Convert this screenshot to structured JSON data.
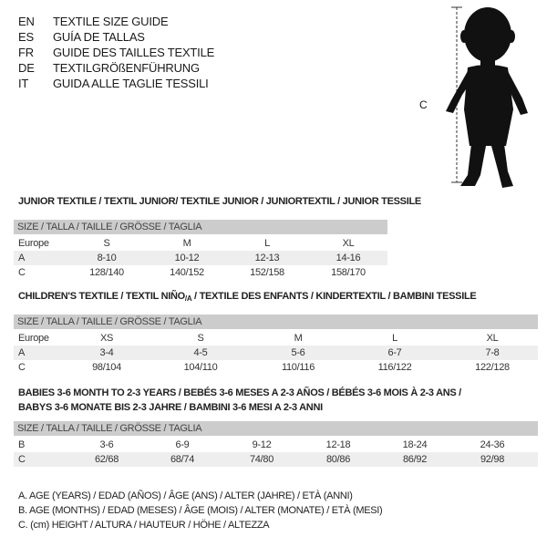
{
  "languages": [
    {
      "code": "EN",
      "title": "TEXTILE SIZE GUIDE"
    },
    {
      "code": "ES",
      "title": "GUÍA DE TALLAS"
    },
    {
      "code": "FR",
      "title": "GUIDE DES TAILLES TEXTILE"
    },
    {
      "code": "DE",
      "title": "TEXTILGRÖßENFÜHRUNG"
    },
    {
      "code": "IT",
      "title": "GUIDA ALLE TAGLIE TESSILI"
    }
  ],
  "figure": {
    "measure_label": "C"
  },
  "junior": {
    "title": "JUNIOR TEXTILE / TEXTIL JUNIOR/ TEXTILE JUNIOR / JUNIORTEXTIL / JUNIOR TESSILE",
    "header": "SIZE / TALLA / TAILLE / GRÖSSE / TAGLIA",
    "rows": [
      {
        "label": "Europe",
        "values": [
          "S",
          "M",
          "L",
          "XL"
        ]
      },
      {
        "label": "A",
        "values": [
          "8-10",
          "10-12",
          "12-13",
          "14-16"
        ]
      },
      {
        "label": "C",
        "values": [
          "128/140",
          "140/152",
          "152/158",
          "158/170"
        ]
      }
    ]
  },
  "children": {
    "title": "CHILDREN'S TEXTILE / TEXTIL NIÑO/A / TEXTILE DES ENFANTS / KINDERTEXTIL / BAMBINI TESSILE",
    "header": "SIZE / TALLA / TAILLE / GRÖSSE / TAGLIA",
    "rows": [
      {
        "label": "Europe",
        "values": [
          "XS",
          "S",
          "M",
          "L",
          "XL"
        ]
      },
      {
        "label": "A",
        "values": [
          "3-4",
          "4-5",
          "5-6",
          "6-7",
          "7-8"
        ]
      },
      {
        "label": "C",
        "values": [
          "98/104",
          "104/110",
          "110/116",
          "116/122",
          "122/128"
        ]
      }
    ]
  },
  "babies": {
    "title_1": "BABIES 3-6 MONTH TO 2-3 YEARS / BEBÉS 3-6 MESES A 2-3 AÑOS / BÉBÉS 3-6 MOIS À 2-3 ANS /",
    "title_2": "BABYS 3-6 MONATE BIS 2-3 JAHRE / BAMBINI 3-6 MESI A 2-3 ANNI",
    "header": "SIZE / TALLA / TAILLE / GRÖSSE / TAGLIA",
    "rows": [
      {
        "label": "B",
        "values": [
          "3-6",
          "6-9",
          "9-12",
          "12-18",
          "18-24",
          "24-36"
        ]
      },
      {
        "label": "C",
        "values": [
          "62/68",
          "68/74",
          "74/80",
          "80/86",
          "86/92",
          "92/98"
        ]
      }
    ]
  },
  "legend": [
    "A. AGE (YEARS) / EDAD (AÑOS) / ÂGE (ANS) / ALTER (JAHRE) / ETÀ (ANNI)",
    "B. AGE (MONTHS) / EDAD (MESES) / ÂGE (MOIS) / ALTER (MONATE) / ETÀ (MESI)",
    "C. (cm) HEIGHT / ALTURA / HAUTEUR / HÖHE / ALTEZZA"
  ]
}
